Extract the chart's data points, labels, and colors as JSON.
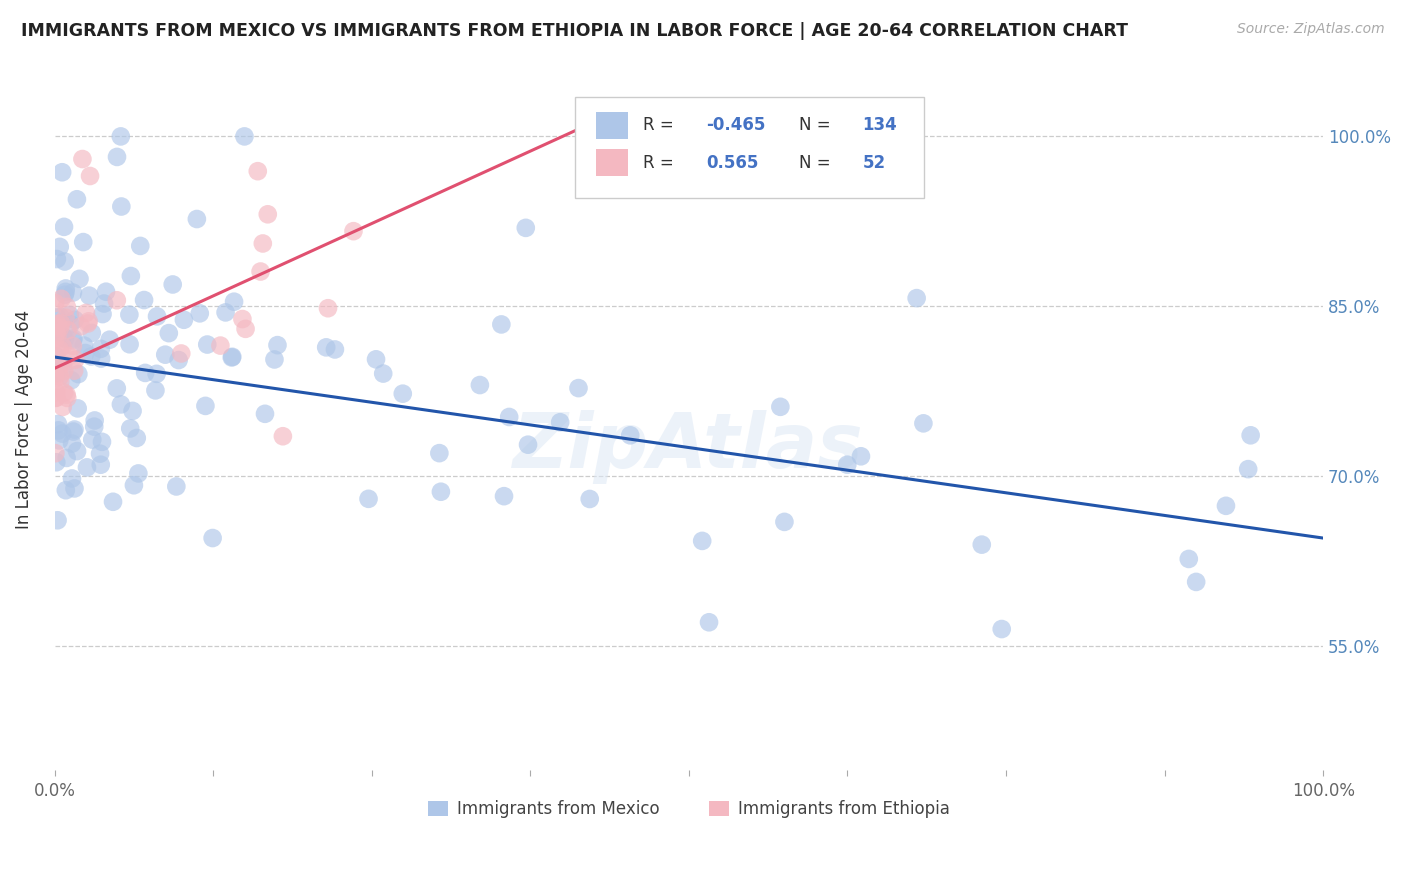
{
  "title": "IMMIGRANTS FROM MEXICO VS IMMIGRANTS FROM ETHIOPIA IN LABOR FORCE | AGE 20-64 CORRELATION CHART",
  "source": "Source: ZipAtlas.com",
  "ylabel": "In Labor Force | Age 20-64",
  "legend_label1": "Immigrants from Mexico",
  "legend_label2": "Immigrants from Ethiopia",
  "R_mexico": -0.465,
  "N_mexico": 134,
  "R_ethiopia": 0.565,
  "N_ethiopia": 52,
  "color_mexico": "#aec6e8",
  "color_ethiopia": "#f4b8c1",
  "line_color_mexico": "#2255aa",
  "line_color_ethiopia": "#e05070",
  "ytick_labels": [
    "55.0%",
    "70.0%",
    "85.0%",
    "100.0%"
  ],
  "ytick_values": [
    0.55,
    0.7,
    0.85,
    1.0
  ],
  "xlim": [
    0.0,
    1.0
  ],
  "ylim": [
    0.44,
    1.06
  ],
  "mex_line_x0": 0.0,
  "mex_line_x1": 1.0,
  "mex_line_y0": 0.805,
  "mex_line_y1": 0.645,
  "eth_line_x0": 0.0,
  "eth_line_x1": 0.42,
  "eth_line_y0": 0.795,
  "eth_line_y1": 1.01
}
